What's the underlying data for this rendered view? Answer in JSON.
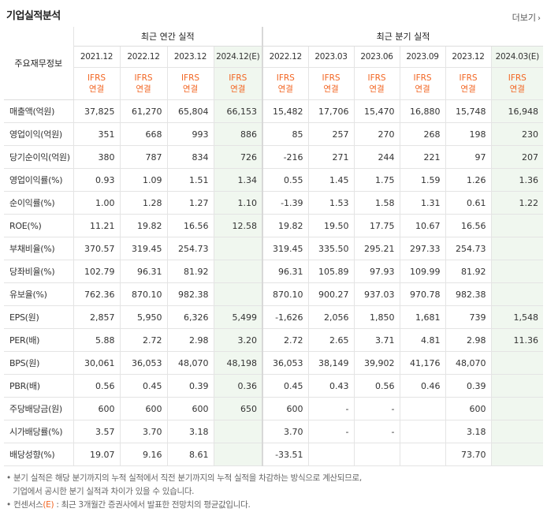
{
  "header": {
    "title": "기업실적분석",
    "more_label": "더보기",
    "more_icon": "chevron-right-icon"
  },
  "table": {
    "corner_label": "주요재무정보",
    "section_annual": "최근 연간 실적",
    "section_quarter": "최근 분기 실적",
    "periods": [
      {
        "label": "2021.12",
        "estimate": false
      },
      {
        "label": "2022.12",
        "estimate": false
      },
      {
        "label": "2023.12",
        "estimate": false
      },
      {
        "label": "2024.12(E)",
        "estimate": true
      },
      {
        "label": "2022.12",
        "estimate": false
      },
      {
        "label": "2023.03",
        "estimate": false
      },
      {
        "label": "2023.06",
        "estimate": false
      },
      {
        "label": "2023.09",
        "estimate": false
      },
      {
        "label": "2023.12",
        "estimate": false
      },
      {
        "label": "2024.03(E)",
        "estimate": true
      }
    ],
    "ifrs_line1": "IFRS",
    "ifrs_line2": "연결",
    "rows": [
      {
        "label": "매출액(억원)",
        "values": [
          "37,825",
          "61,270",
          "65,804",
          "66,153",
          "15,482",
          "17,706",
          "15,470",
          "16,880",
          "15,748",
          "16,948"
        ]
      },
      {
        "label": "영업이익(억원)",
        "values": [
          "351",
          "668",
          "993",
          "886",
          "85",
          "257",
          "270",
          "268",
          "198",
          "230"
        ]
      },
      {
        "label": "당기순이익(억원)",
        "values": [
          "380",
          "787",
          "834",
          "726",
          "-216",
          "271",
          "244",
          "221",
          "97",
          "207"
        ]
      },
      {
        "label": "영업이익률(%)",
        "values": [
          "0.93",
          "1.09",
          "1.51",
          "1.34",
          "0.55",
          "1.45",
          "1.75",
          "1.59",
          "1.26",
          "1.36"
        ]
      },
      {
        "label": "순이익률(%)",
        "values": [
          "1.00",
          "1.28",
          "1.27",
          "1.10",
          "-1.39",
          "1.53",
          "1.58",
          "1.31",
          "0.61",
          "1.22"
        ]
      },
      {
        "label": "ROE(%)",
        "values": [
          "11.21",
          "19.82",
          "16.56",
          "12.58",
          "19.82",
          "19.50",
          "17.75",
          "10.67",
          "16.56",
          ""
        ]
      },
      {
        "label": "부채비율(%)",
        "values": [
          "370.57",
          "319.45",
          "254.73",
          "",
          "319.45",
          "335.50",
          "295.21",
          "297.33",
          "254.73",
          ""
        ]
      },
      {
        "label": "당좌비율(%)",
        "values": [
          "102.79",
          "96.31",
          "81.92",
          "",
          "96.31",
          "105.89",
          "97.93",
          "109.99",
          "81.92",
          ""
        ]
      },
      {
        "label": "유보율(%)",
        "values": [
          "762.36",
          "870.10",
          "982.38",
          "",
          "870.10",
          "900.27",
          "937.03",
          "970.78",
          "982.38",
          ""
        ]
      },
      {
        "label": "EPS(원)",
        "values": [
          "2,857",
          "5,950",
          "6,326",
          "5,499",
          "-1,626",
          "2,056",
          "1,850",
          "1,681",
          "739",
          "1,548"
        ]
      },
      {
        "label": "PER(배)",
        "values": [
          "5.88",
          "2.72",
          "2.98",
          "3.20",
          "2.72",
          "2.65",
          "3.71",
          "4.81",
          "2.98",
          "11.36"
        ]
      },
      {
        "label": "BPS(원)",
        "values": [
          "30,061",
          "36,053",
          "48,070",
          "48,198",
          "36,053",
          "38,149",
          "39,902",
          "41,176",
          "48,070",
          ""
        ]
      },
      {
        "label": "PBR(배)",
        "values": [
          "0.56",
          "0.45",
          "0.39",
          "0.36",
          "0.45",
          "0.43",
          "0.56",
          "0.46",
          "0.39",
          ""
        ]
      },
      {
        "label": "주당배당금(원)",
        "values": [
          "600",
          "600",
          "600",
          "650",
          "600",
          "-",
          "-",
          "",
          "600",
          ""
        ]
      },
      {
        "label": "시가배당률(%)",
        "values": [
          "3.57",
          "3.70",
          "3.18",
          "",
          "3.70",
          "-",
          "-",
          "",
          "3.18",
          ""
        ]
      },
      {
        "label": "배당성향(%)",
        "values": [
          "19.07",
          "9.16",
          "8.61",
          "",
          "-33.51",
          "",
          "",
          "",
          "73.70",
          ""
        ]
      }
    ]
  },
  "footer": {
    "note1_line1": "분기 실적은 해당 분기까지의 누적 실적에서 직전 분기까지의 누적 실적을 차감하는 방식으로 계산되므로,",
    "note1_line2": "기업에서 공시한 분기 실적과 차이가 있을 수 있습니다.",
    "note2_prefix": "컨센서스",
    "note2_mark": "(E)",
    "note2_suffix": ": 최근 3개월간 증권사에서 발표한 전망치의 평균값입니다."
  },
  "colors": {
    "accent": "#f26522",
    "negative": "#e8291c",
    "estimate_bg": "#f0f7ef"
  }
}
